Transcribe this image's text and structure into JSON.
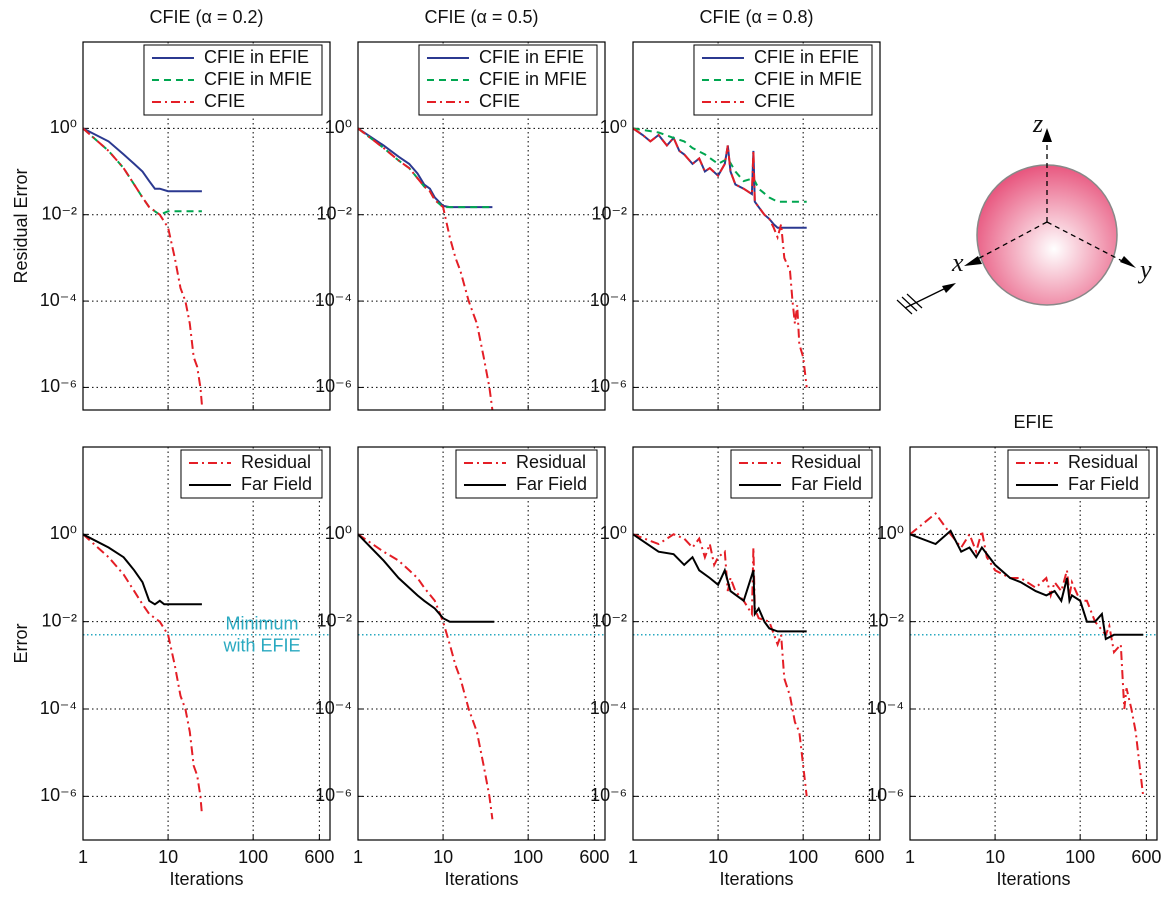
{
  "chart_data": [
    {
      "type": "line",
      "title": "CFIE (α = 0.2)",
      "ylabel": "Residual Error",
      "xscale": "log",
      "yscale": "log",
      "grid": true,
      "legend": "upper right",
      "xtick_labels": false,
      "xlim": [
        1,
        800
      ],
      "ylim": [
        3e-07,
        100
      ],
      "xticks": [
        10,
        100
      ],
      "yticks": [
        {
          "value": 1,
          "label": "10⁰"
        },
        {
          "value": 0.01,
          "label": "10⁻²"
        },
        {
          "value": 0.0001,
          "label": "10⁻⁴"
        },
        {
          "value": 1e-06,
          "label": "10⁻⁶"
        }
      ],
      "series": [
        {
          "name": "CFIE in EFIE",
          "color": "#2b3990",
          "style": "solid",
          "x": [
            1,
            2,
            3,
            4,
            5,
            6,
            7,
            8,
            10,
            15,
            25
          ],
          "values": [
            1,
            0.5,
            0.25,
            0.15,
            0.1,
            0.06,
            0.04,
            0.04,
            0.035,
            0.035,
            0.035
          ]
        },
        {
          "name": "CFIE in MFIE",
          "color": "#00a650",
          "style": "dashed",
          "x": [
            1,
            2,
            3,
            4,
            5,
            6,
            7,
            8,
            10,
            25
          ],
          "values": [
            1,
            0.3,
            0.12,
            0.05,
            0.025,
            0.015,
            0.012,
            0.01,
            0.012,
            0.012
          ]
        },
        {
          "name": "CFIE",
          "color": "#e41e26",
          "style": "dashdot",
          "x": [
            1,
            2,
            3,
            4,
            5,
            6,
            8,
            10,
            12,
            14,
            16,
            18,
            20,
            22,
            24,
            25
          ],
          "values": [
            1,
            0.3,
            0.12,
            0.05,
            0.025,
            0.015,
            0.01,
            0.005,
            0.001,
            0.0002,
            0.0001,
            3e-05,
            5e-06,
            3e-06,
            1e-06,
            4e-07
          ]
        }
      ]
    },
    {
      "type": "line",
      "title": "CFIE (α = 0.5)",
      "xscale": "log",
      "yscale": "log",
      "grid": true,
      "legend": "upper right",
      "xtick_labels": false,
      "xlim": [
        1,
        800
      ],
      "ylim": [
        3e-07,
        100
      ],
      "xticks": [
        10,
        100
      ],
      "yticks": [
        {
          "value": 1,
          "label": "10⁰"
        },
        {
          "value": 0.01,
          "label": "10⁻²"
        },
        {
          "value": 0.0001,
          "label": "10⁻⁴"
        },
        {
          "value": 1e-06,
          "label": "10⁻⁶"
        }
      ],
      "series": [
        {
          "name": "CFIE in EFIE",
          "color": "#2b3990",
          "style": "solid",
          "x": [
            1,
            2,
            3,
            4,
            5,
            6,
            7,
            8,
            10,
            12,
            20,
            38
          ],
          "values": [
            1,
            0.4,
            0.22,
            0.15,
            0.09,
            0.05,
            0.04,
            0.025,
            0.016,
            0.015,
            0.015,
            0.015
          ]
        },
        {
          "name": "CFIE in MFIE",
          "color": "#00a650",
          "style": "dashed",
          "x": [
            1,
            2,
            3,
            4,
            5,
            6,
            7,
            8,
            10,
            12,
            20,
            38
          ],
          "values": [
            1,
            0.35,
            0.18,
            0.12,
            0.07,
            0.045,
            0.035,
            0.022,
            0.015,
            0.015,
            0.015,
            0.015
          ]
        },
        {
          "name": "CFIE",
          "color": "#e41e26",
          "style": "dashdot",
          "x": [
            1,
            2,
            3,
            4,
            5,
            6,
            7,
            8,
            10,
            12,
            14,
            16,
            20,
            25,
            30,
            35,
            38
          ],
          "values": [
            1,
            0.35,
            0.18,
            0.12,
            0.07,
            0.045,
            0.035,
            0.022,
            0.015,
            0.003,
            0.001,
            0.0005,
            0.0001,
            3e-05,
            5e-06,
            1e-06,
            3e-07
          ]
        }
      ]
    },
    {
      "type": "line",
      "title": "CFIE (α = 0.8)",
      "xscale": "log",
      "yscale": "log",
      "grid": true,
      "legend": "upper right",
      "xtick_labels": false,
      "xlim": [
        1,
        800
      ],
      "ylim": [
        3e-07,
        100
      ],
      "xticks": [
        10,
        100
      ],
      "yticks": [
        {
          "value": 1,
          "label": "10⁰"
        },
        {
          "value": 0.01,
          "label": "10⁻²"
        },
        {
          "value": 0.0001,
          "label": "10⁻⁴"
        },
        {
          "value": 1e-06,
          "label": "10⁻⁶"
        }
      ],
      "series": [
        {
          "name": "CFIE in EFIE",
          "color": "#2b3990",
          "style": "solid",
          "x": [
            1,
            1.3,
            1.6,
            2,
            2.5,
            3,
            3.5,
            4,
            5,
            6,
            7,
            8,
            10,
            12,
            13,
            14,
            16,
            20,
            25,
            26,
            27,
            30,
            35,
            40,
            45,
            50,
            70,
            110
          ],
          "values": [
            1,
            0.7,
            0.5,
            0.7,
            0.4,
            0.6,
            0.3,
            0.25,
            0.15,
            0.2,
            0.1,
            0.12,
            0.08,
            0.15,
            0.4,
            0.1,
            0.05,
            0.04,
            0.03,
            0.3,
            0.02,
            0.015,
            0.01,
            0.008,
            0.006,
            0.005,
            0.005,
            0.005
          ]
        },
        {
          "name": "CFIE in MFIE",
          "color": "#00a650",
          "style": "dashed",
          "x": [
            1,
            2,
            3,
            4,
            5,
            7,
            10,
            13,
            16,
            20,
            26,
            30,
            40,
            50,
            70,
            110
          ],
          "values": [
            1,
            0.8,
            0.6,
            0.5,
            0.35,
            0.25,
            0.15,
            0.2,
            0.1,
            0.06,
            0.07,
            0.04,
            0.025,
            0.02,
            0.02,
            0.02
          ]
        },
        {
          "name": "CFIE",
          "color": "#e41e26",
          "style": "dashdot",
          "x": [
            1,
            1.3,
            1.6,
            2,
            2.5,
            3,
            3.5,
            4,
            5,
            6,
            7,
            8,
            10,
            12,
            13,
            14,
            16,
            20,
            25,
            26,
            27,
            30,
            35,
            40,
            45,
            50,
            55,
            60,
            70,
            75,
            80,
            85,
            90,
            100,
            110
          ],
          "values": [
            1,
            0.7,
            0.5,
            0.7,
            0.4,
            0.6,
            0.3,
            0.25,
            0.15,
            0.2,
            0.1,
            0.12,
            0.08,
            0.15,
            0.4,
            0.1,
            0.05,
            0.04,
            0.03,
            0.3,
            0.02,
            0.015,
            0.01,
            0.008,
            0.005,
            0.003,
            0.006,
            0.001,
            0.0005,
            0.0001,
            3e-05,
            8e-05,
            1e-05,
            5e-06,
            1e-06
          ]
        }
      ]
    },
    {
      "type": "line",
      "ylabel": "Error",
      "xlabel": "Iterations",
      "xscale": "log",
      "yscale": "log",
      "grid": true,
      "legend": "upper right",
      "xtick_labels": true,
      "xlim": [
        1,
        800
      ],
      "ylim": [
        1e-07,
        100
      ],
      "xticks": [
        1,
        10,
        100,
        600
      ],
      "yticks": [
        {
          "value": 1,
          "label": "10⁰"
        },
        {
          "value": 0.01,
          "label": "10⁻²"
        },
        {
          "value": 0.0001,
          "label": "10⁻⁴"
        },
        {
          "value": 1e-06,
          "label": "10⁻⁶"
        }
      ],
      "reference_line": {
        "value": 0.005,
        "color": "#29a9c0"
      },
      "annotation": [
        "Minimum",
        "with EFIE"
      ],
      "series": [
        {
          "name": "Residual",
          "color": "#e41e26",
          "style": "dashdot",
          "x": [
            1,
            2,
            3,
            4,
            5,
            6,
            8,
            10,
            12,
            14,
            16,
            18,
            20,
            22,
            24,
            25
          ],
          "values": [
            1,
            0.3,
            0.12,
            0.05,
            0.025,
            0.015,
            0.01,
            0.005,
            0.001,
            0.0002,
            0.0001,
            3e-05,
            5e-06,
            3e-06,
            1e-06,
            4e-07
          ]
        },
        {
          "name": "Far Field",
          "color": "#000000",
          "style": "solid",
          "x": [
            1,
            2,
            3,
            4,
            5,
            6,
            7,
            8,
            9,
            12,
            25
          ],
          "values": [
            1,
            0.5,
            0.3,
            0.15,
            0.08,
            0.03,
            0.025,
            0.03,
            0.025,
            0.025,
            0.025
          ]
        }
      ]
    },
    {
      "type": "line",
      "xlabel": "Iterations",
      "xscale": "log",
      "yscale": "log",
      "grid": true,
      "legend": "upper right",
      "xtick_labels": true,
      "xlim": [
        1,
        800
      ],
      "ylim": [
        1e-07,
        100
      ],
      "xticks": [
        1,
        10,
        100,
        600
      ],
      "yticks": [
        {
          "value": 1,
          "label": "10⁰"
        },
        {
          "value": 0.01,
          "label": "10⁻²"
        },
        {
          "value": 0.0001,
          "label": "10⁻⁴"
        },
        {
          "value": 1e-06,
          "label": "10⁻⁶"
        }
      ],
      "reference_line": {
        "value": 0.005,
        "color": "#29a9c0"
      },
      "series": [
        {
          "name": "Residual",
          "color": "#e41e26",
          "style": "dashdot",
          "x": [
            1,
            2,
            3,
            4,
            5,
            6,
            8,
            10,
            12,
            14,
            16,
            20,
            25,
            30,
            35,
            38
          ],
          "values": [
            1,
            0.4,
            0.25,
            0.15,
            0.1,
            0.06,
            0.03,
            0.01,
            0.003,
            0.001,
            0.0005,
            0.0001,
            3e-05,
            5e-06,
            1e-06,
            3e-07
          ]
        },
        {
          "name": "Far Field",
          "color": "#000000",
          "style": "solid",
          "x": [
            1,
            2,
            3,
            4,
            5,
            6,
            8,
            10,
            12,
            40
          ],
          "values": [
            1,
            0.25,
            0.1,
            0.06,
            0.04,
            0.03,
            0.02,
            0.012,
            0.01,
            0.01
          ]
        }
      ]
    },
    {
      "type": "line",
      "xlabel": "Iterations",
      "xscale": "log",
      "yscale": "log",
      "grid": true,
      "legend": "upper right",
      "xtick_labels": true,
      "xlim": [
        1,
        800
      ],
      "ylim": [
        1e-07,
        100
      ],
      "xticks": [
        1,
        10,
        100,
        600
      ],
      "yticks": [
        {
          "value": 1,
          "label": "10⁰"
        },
        {
          "value": 0.01,
          "label": "10⁻²"
        },
        {
          "value": 0.0001,
          "label": "10⁻⁴"
        },
        {
          "value": 1e-06,
          "label": "10⁻⁶"
        }
      ],
      "reference_line": {
        "value": 0.005,
        "color": "#29a9c0"
      },
      "series": [
        {
          "name": "Residual",
          "color": "#e41e26",
          "style": "dashdot",
          "x": [
            1,
            2,
            3,
            4,
            5,
            6,
            7,
            8,
            9,
            10,
            12,
            13,
            14,
            16,
            20,
            25,
            26,
            27,
            30,
            40,
            50,
            55,
            60,
            70,
            80,
            90,
            100,
            110
          ],
          "values": [
            1,
            0.6,
            1,
            0.8,
            0.5,
            0.8,
            0.3,
            0.6,
            0.2,
            0.3,
            0.4,
            0.05,
            0.1,
            0.05,
            0.03,
            0.015,
            0.5,
            0.02,
            0.012,
            0.01,
            0.003,
            0.005,
            0.0005,
            0.0002,
            5e-05,
            3e-05,
            5e-06,
            1e-06
          ]
        },
        {
          "name": "Far Field",
          "color": "#000000",
          "style": "solid",
          "x": [
            1,
            2,
            3,
            4,
            5,
            6,
            8,
            10,
            12,
            14,
            20,
            26,
            27,
            30,
            35,
            40,
            50,
            110
          ],
          "values": [
            1,
            0.4,
            0.35,
            0.2,
            0.3,
            0.15,
            0.1,
            0.07,
            0.15,
            0.05,
            0.03,
            0.15,
            0.015,
            0.02,
            0.01,
            0.007,
            0.006,
            0.006
          ]
        }
      ]
    },
    {
      "type": "line",
      "title": "EFIE",
      "xlabel": "Iterations",
      "xscale": "log",
      "yscale": "log",
      "grid": true,
      "legend": "upper right",
      "xtick_labels": true,
      "xlim": [
        1,
        800
      ],
      "ylim": [
        1e-07,
        100
      ],
      "xticks": [
        1,
        10,
        100,
        600
      ],
      "yticks": [
        {
          "value": 1,
          "label": "10⁰"
        },
        {
          "value": 0.01,
          "label": "10⁻²"
        },
        {
          "value": 0.0001,
          "label": "10⁻⁴"
        },
        {
          "value": 1e-06,
          "label": "10⁻⁶"
        }
      ],
      "reference_line": {
        "value": 0.005,
        "color": "#29a9c0"
      },
      "series": [
        {
          "name": "Residual",
          "color": "#e41e26",
          "style": "dashdot",
          "x": [
            1,
            2,
            3,
            4,
            5,
            6,
            7,
            8,
            10,
            15,
            20,
            30,
            40,
            45,
            50,
            60,
            70,
            75,
            80,
            100,
            120,
            150,
            200,
            220,
            250,
            300,
            330,
            350,
            400,
            450,
            500,
            550
          ],
          "values": [
            1,
            3,
            1,
            0.5,
            1,
            0.4,
            1.2,
            0.3,
            0.15,
            0.1,
            0.1,
            0.06,
            0.1,
            0.04,
            0.08,
            0.05,
            0.15,
            0.04,
            0.08,
            0.03,
            0.03,
            0.01,
            0.005,
            0.008,
            0.002,
            0.003,
            0.0001,
            0.0003,
            0.0001,
            3e-05,
            5e-06,
            1e-06
          ]
        },
        {
          "name": "Far Field",
          "color": "#000000",
          "style": "solid",
          "x": [
            1,
            2,
            3,
            4,
            5,
            6,
            7,
            10,
            15,
            20,
            30,
            40,
            50,
            60,
            70,
            75,
            80,
            100,
            120,
            150,
            180,
            200,
            250,
            300,
            550
          ],
          "values": [
            1,
            0.6,
            1.2,
            0.4,
            0.5,
            0.3,
            0.5,
            0.2,
            0.1,
            0.08,
            0.05,
            0.04,
            0.05,
            0.03,
            0.1,
            0.03,
            0.04,
            0.03,
            0.01,
            0.01,
            0.015,
            0.004,
            0.005,
            0.005,
            0.005
          ]
        }
      ]
    }
  ],
  "diagram": {
    "axes": [
      "z",
      "x",
      "y"
    ]
  }
}
